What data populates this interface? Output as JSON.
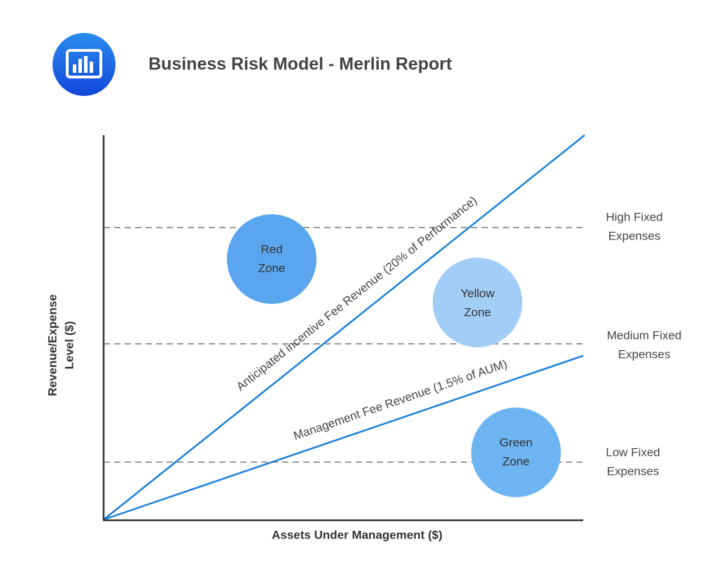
{
  "header": {
    "title": "Business Risk Model - Merlin Report"
  },
  "axes": {
    "y_label": [
      "Revenue/Expense",
      "Level ($)"
    ],
    "x_label": "Assets Under Management ($)"
  },
  "lines": [
    {
      "label": "Anticipated incentive Fee Revenue (20% of Performance)"
    },
    {
      "label": "Management Fee Revenue (1.5% of AUM)"
    }
  ],
  "zones": [
    {
      "label": [
        "Red",
        "Zone"
      ]
    },
    {
      "label": [
        "Yellow",
        "Zone"
      ]
    },
    {
      "label": [
        "Green",
        "Zone"
      ]
    }
  ],
  "levels": [
    {
      "label": [
        "High Fixed",
        "Expenses"
      ]
    },
    {
      "label": [
        "Medium Fixed",
        "Expenses"
      ]
    },
    {
      "label": [
        "Low Fixed",
        "Expenses"
      ]
    }
  ]
}
